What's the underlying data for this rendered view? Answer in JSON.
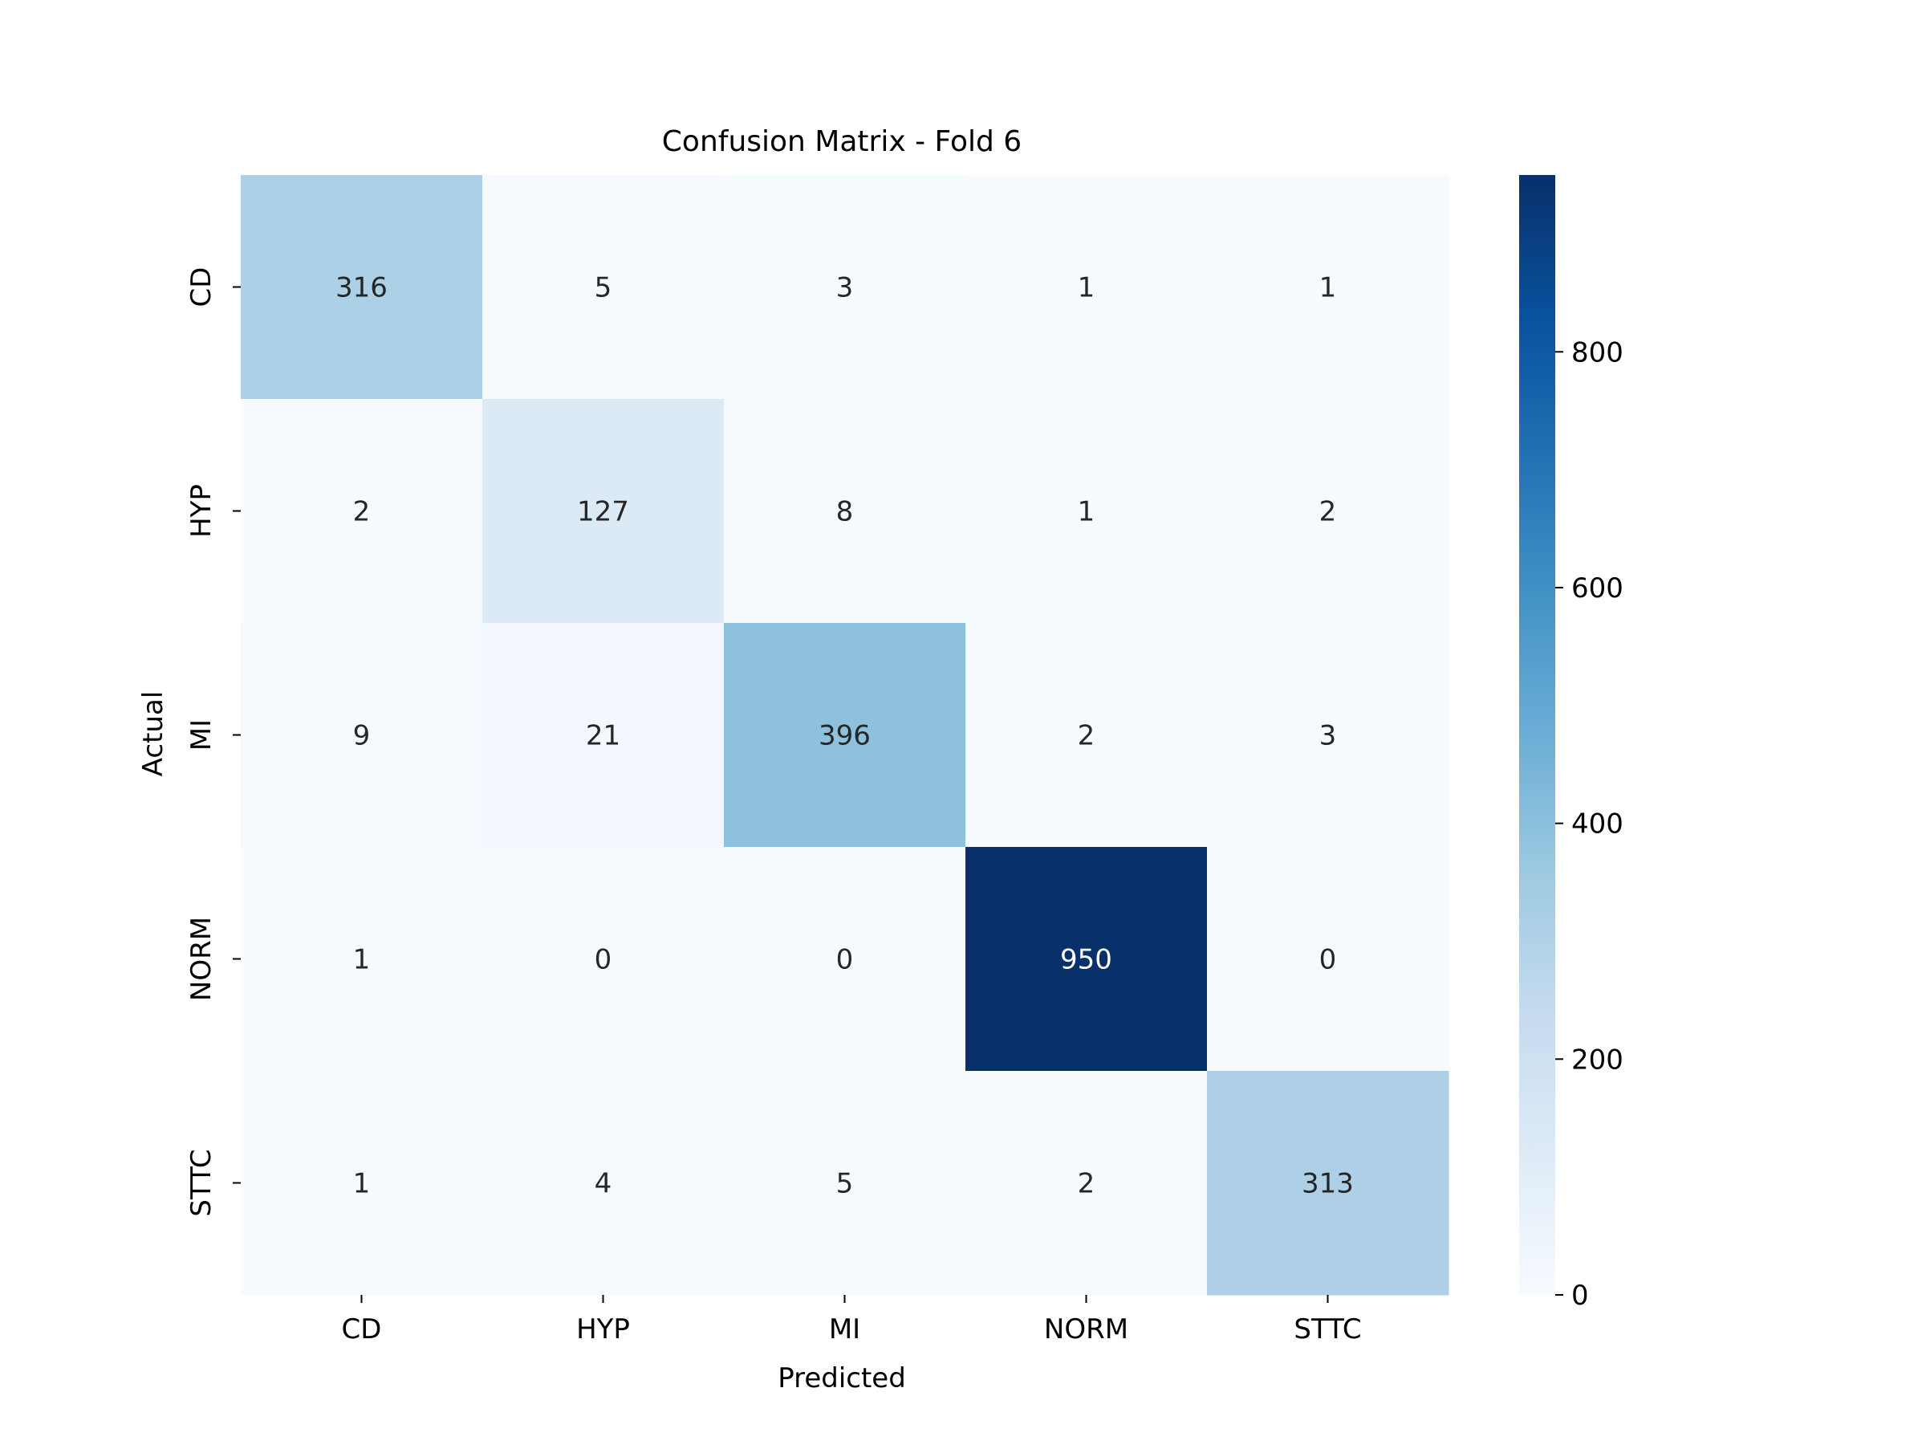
{
  "chart_data": {
    "type": "heatmap",
    "title": "Confusion Matrix - Fold 6",
    "xlabel": "Predicted",
    "ylabel": "Actual",
    "x_categories": [
      "CD",
      "HYP",
      "MI",
      "NORM",
      "STTC"
    ],
    "y_categories": [
      "CD",
      "HYP",
      "MI",
      "NORM",
      "STTC"
    ],
    "values": [
      [
        316,
        5,
        3,
        1,
        1
      ],
      [
        2,
        127,
        8,
        1,
        2
      ],
      [
        9,
        21,
        396,
        2,
        3
      ],
      [
        1,
        0,
        0,
        950,
        0
      ],
      [
        1,
        4,
        5,
        2,
        313
      ]
    ],
    "colormap": "Blues",
    "colorbar": {
      "min": 0,
      "max": 950,
      "ticks": [
        0,
        200,
        400,
        600,
        800
      ]
    },
    "colors": {
      "low": "#f7fbff",
      "high": "#08306b"
    }
  }
}
